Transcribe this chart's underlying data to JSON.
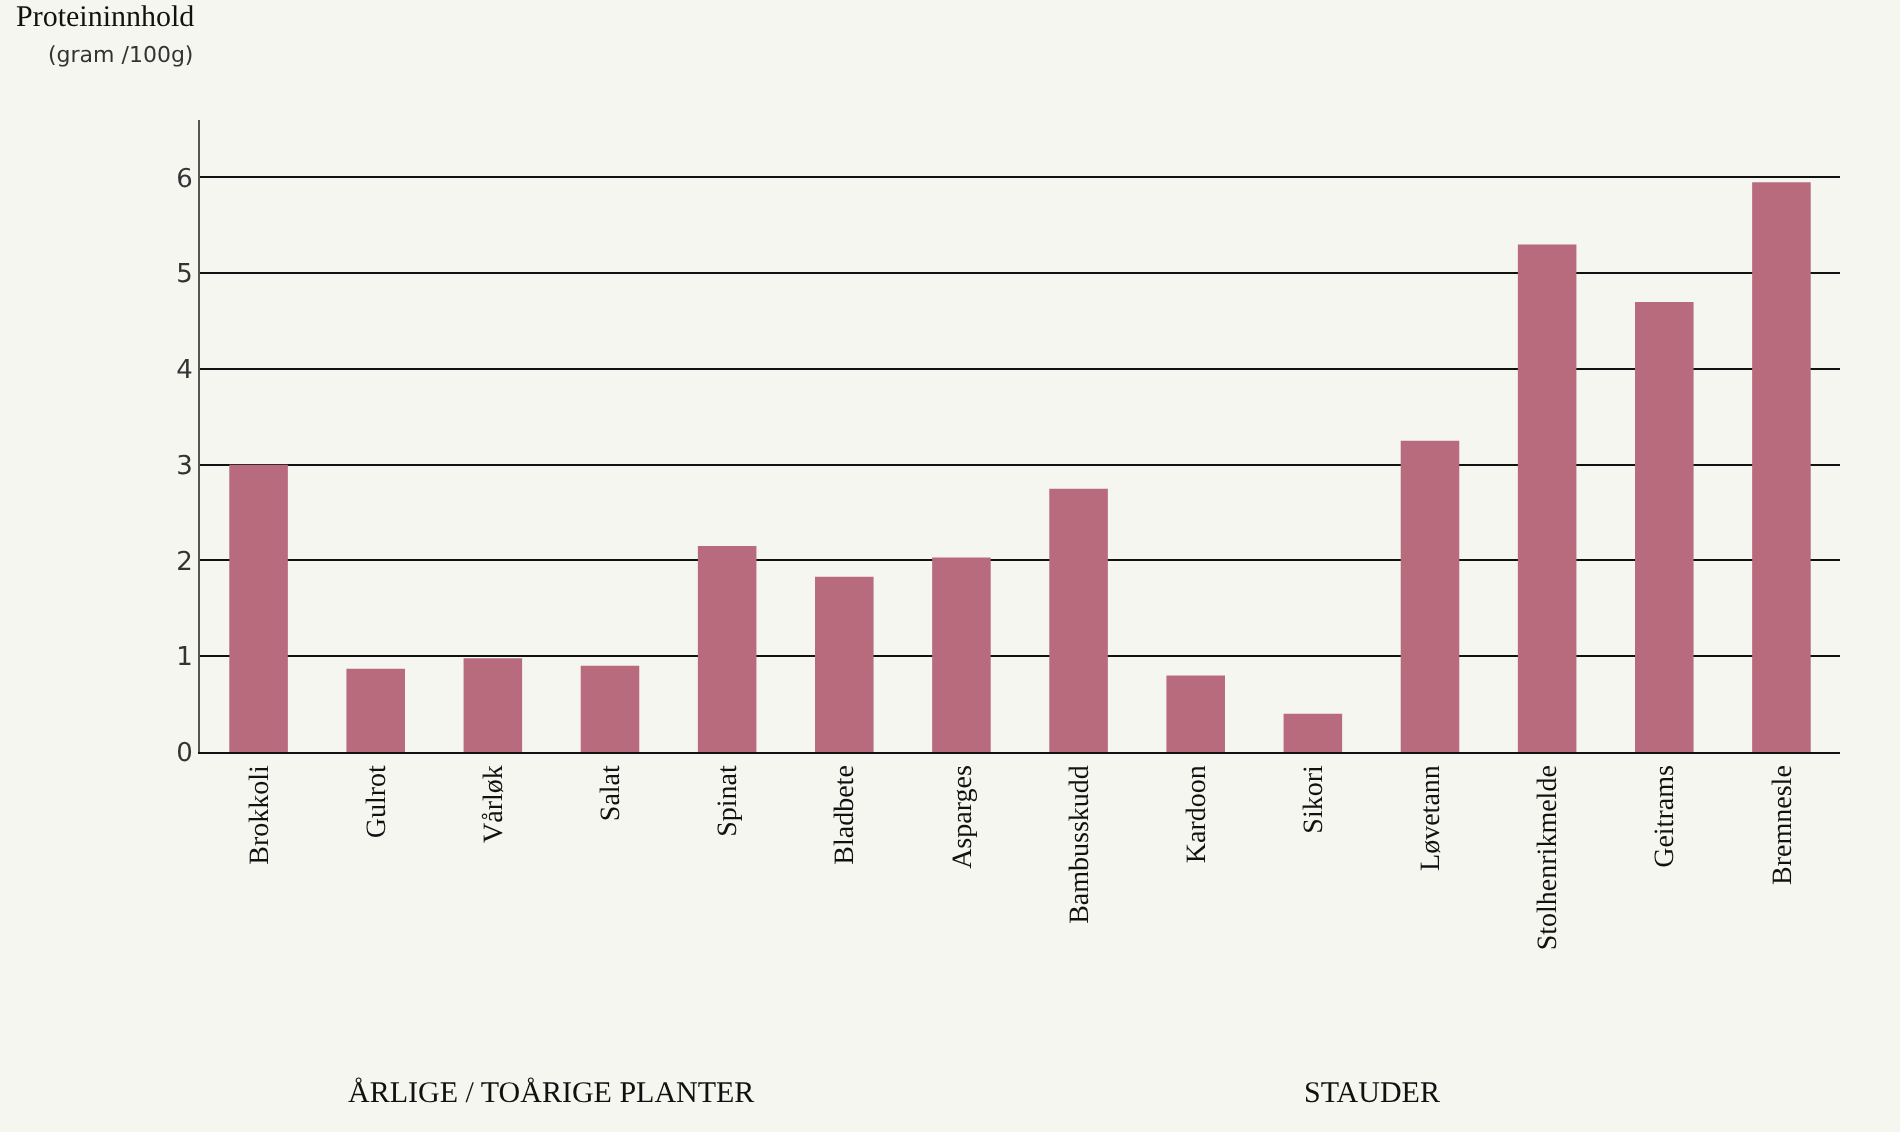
{
  "chart_data": {
    "type": "bar",
    "title": "Proteininnhold",
    "ylabel": "(gram /100g)",
    "categories": [
      "Brokkoli",
      "Gulrot",
      "Vårløk",
      "Salat",
      "Spinat",
      "Bladbete",
      "Asparges",
      "Bambusskudd",
      "Kardoon",
      "Sikori",
      "Løvetann",
      "Stolhenrikmelde",
      "Geitrams",
      "Bremnesle"
    ],
    "values": [
      3.0,
      0.87,
      0.98,
      0.9,
      2.15,
      1.83,
      2.03,
      2.75,
      0.8,
      0.4,
      3.25,
      5.3,
      4.7,
      5.95
    ],
    "color": "#b96b7e",
    "ylim": [
      0,
      6.6
    ],
    "yticks": [
      0,
      1,
      2,
      3,
      4,
      5,
      6
    ],
    "grid": "y",
    "annotations": [
      "ÅRLIGE / TOÅRIGE PLANTER",
      "STAUDER"
    ]
  }
}
